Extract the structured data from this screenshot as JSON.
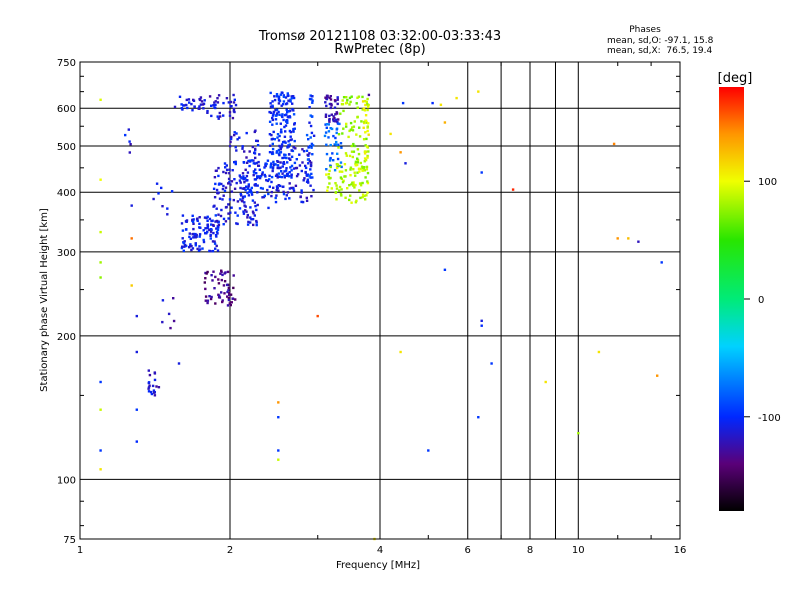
{
  "chart_data": {
    "type": "scatter",
    "title": "Tromsø 20121108 03:32:00-03:33:43",
    "subtitle": "RwPretec (8p)",
    "xlabel": "Frequency [MHz]",
    "ylabel": "Stationary phase Virtual Height [km]",
    "x_scale": "log",
    "y_scale": "log",
    "xlim": [
      1,
      16
    ],
    "ylim": [
      75,
      750
    ],
    "x_ticks": [
      1,
      2,
      4,
      6,
      8,
      10,
      16
    ],
    "y_ticks": [
      75,
      100,
      200,
      300,
      400,
      500,
      600,
      750
    ],
    "x_minor_gridlines": [
      7,
      9
    ],
    "grid": true,
    "stats": {
      "heading": "Phases",
      "line1": "mean, sd,O: -97.1, 15.8",
      "line2": "mean, sd,X:  76.5, 19.4"
    },
    "colorbar": {
      "label": "[deg]",
      "range": [
        -180,
        180
      ],
      "ticks": [
        100,
        0,
        -100
      ],
      "location": "right"
    },
    "clusters": [
      {
        "x": [
          1.55,
          1.78
        ],
        "y": [
          590,
          640
        ],
        "phase": -110,
        "n": 30
      },
      {
        "x": [
          1.8,
          2.1
        ],
        "y": [
          570,
          640
        ],
        "phase": -115,
        "n": 35
      },
      {
        "x": [
          1.6,
          1.9
        ],
        "y": [
          300,
          360
        ],
        "phase": -105,
        "n": 110
      },
      {
        "x": [
          1.85,
          2.3
        ],
        "y": [
          340,
          460
        ],
        "phase": -110,
        "n": 130
      },
      {
        "x": [
          2.1,
          2.6
        ],
        "y": [
          370,
          470
        ],
        "phase": -105,
        "n": 90
      },
      {
        "x": [
          2.0,
          2.3
        ],
        "y": [
          460,
          540
        ],
        "phase": -110,
        "n": 40
      },
      {
        "x": [
          2.4,
          2.7
        ],
        "y": [
          430,
          650
        ],
        "phase": -100,
        "n": 190
      },
      {
        "x": [
          2.6,
          2.95
        ],
        "y": [
          380,
          500
        ],
        "phase": -110,
        "n": 60
      },
      {
        "x": [
          2.85,
          2.95
        ],
        "y": [
          420,
          640
        ],
        "phase": -95,
        "n": 35
      },
      {
        "x": [
          3.1,
          3.3
        ],
        "y": [
          560,
          640
        ],
        "phase": -125,
        "n": 40
      },
      {
        "x": [
          3.1,
          3.35
        ],
        "y": [
          440,
          560
        ],
        "phase": -80,
        "n": 40
      },
      {
        "x": [
          3.1,
          3.8
        ],
        "y": [
          380,
          460
        ],
        "phase": 85,
        "n": 90
      },
      {
        "x": [
          3.3,
          3.8
        ],
        "y": [
          460,
          640
        ],
        "phase": 80,
        "n": 70
      },
      {
        "x": [
          3.7,
          3.8
        ],
        "y": [
          460,
          620
        ],
        "phase": 100,
        "n": 25
      },
      {
        "x": [
          1.78,
          2.05
        ],
        "y": [
          230,
          275
        ],
        "phase": -135,
        "n": 60
      },
      {
        "x": [
          1.36,
          1.45
        ],
        "y": [
          150,
          170
        ],
        "phase": -115,
        "n": 20
      },
      {
        "x": [
          1.23,
          1.3
        ],
        "y": [
          460,
          560
        ],
        "phase": -110,
        "n": 5
      },
      {
        "x": [
          1.4,
          1.55
        ],
        "y": [
          340,
          420
        ],
        "phase": -110,
        "n": 8
      },
      {
        "x": [
          1.45,
          1.55
        ],
        "y": [
          200,
          240
        ],
        "phase": -120,
        "n": 6
      }
    ],
    "points": [
      {
        "x": 1.1,
        "y": 625,
        "phase": 95
      },
      {
        "x": 1.1,
        "y": 425,
        "phase": 100
      },
      {
        "x": 1.1,
        "y": 330,
        "phase": 90
      },
      {
        "x": 1.1,
        "y": 285,
        "phase": 80
      },
      {
        "x": 1.1,
        "y": 265,
        "phase": 75
      },
      {
        "x": 1.1,
        "y": 160,
        "phase": -95
      },
      {
        "x": 1.1,
        "y": 140,
        "phase": 90
      },
      {
        "x": 1.1,
        "y": 115,
        "phase": -95
      },
      {
        "x": 1.1,
        "y": 105,
        "phase": 110
      },
      {
        "x": 1.27,
        "y": 375,
        "phase": -110
      },
      {
        "x": 1.27,
        "y": 320,
        "phase": 150
      },
      {
        "x": 1.27,
        "y": 255,
        "phase": 120
      },
      {
        "x": 1.3,
        "y": 220,
        "phase": -110
      },
      {
        "x": 1.3,
        "y": 185,
        "phase": -110
      },
      {
        "x": 1.3,
        "y": 140,
        "phase": -95
      },
      {
        "x": 1.3,
        "y": 120,
        "phase": -100
      },
      {
        "x": 1.58,
        "y": 175,
        "phase": -110
      },
      {
        "x": 2.5,
        "y": 145,
        "phase": 140
      },
      {
        "x": 2.5,
        "y": 135,
        "phase": -95
      },
      {
        "x": 2.5,
        "y": 115,
        "phase": -95
      },
      {
        "x": 2.5,
        "y": 110,
        "phase": 90
      },
      {
        "x": 3.0,
        "y": 220,
        "phase": 160
      },
      {
        "x": 3.8,
        "y": 640,
        "phase": -130
      },
      {
        "x": 3.7,
        "y": 620,
        "phase": 110
      },
      {
        "x": 3.9,
        "y": 75,
        "phase": 110
      },
      {
        "x": 4.2,
        "y": 530,
        "phase": 110
      },
      {
        "x": 4.4,
        "y": 485,
        "phase": 140
      },
      {
        "x": 4.45,
        "y": 615,
        "phase": -95
      },
      {
        "x": 4.5,
        "y": 460,
        "phase": -110
      },
      {
        "x": 4.4,
        "y": 185,
        "phase": 110
      },
      {
        "x": 5.0,
        "y": 115,
        "phase": -95
      },
      {
        "x": 5.1,
        "y": 615,
        "phase": -100
      },
      {
        "x": 5.3,
        "y": 610,
        "phase": 110
      },
      {
        "x": 5.4,
        "y": 560,
        "phase": 130
      },
      {
        "x": 5.4,
        "y": 275,
        "phase": -95
      },
      {
        "x": 5.7,
        "y": 630,
        "phase": 110
      },
      {
        "x": 6.3,
        "y": 650,
        "phase": 110
      },
      {
        "x": 6.4,
        "y": 440,
        "phase": -95
      },
      {
        "x": 6.4,
        "y": 215,
        "phase": -110
      },
      {
        "x": 6.4,
        "y": 210,
        "phase": -100
      },
      {
        "x": 6.3,
        "y": 135,
        "phase": -95
      },
      {
        "x": 6.7,
        "y": 175,
        "phase": -95
      },
      {
        "x": 7.4,
        "y": 405,
        "phase": 170
      },
      {
        "x": 8.6,
        "y": 160,
        "phase": 110
      },
      {
        "x": 10.0,
        "y": 125,
        "phase": 80
      },
      {
        "x": 11.0,
        "y": 185,
        "phase": 110
      },
      {
        "x": 11.8,
        "y": 505,
        "phase": 145
      },
      {
        "x": 12.0,
        "y": 320,
        "phase": 140
      },
      {
        "x": 12.6,
        "y": 320,
        "phase": 125
      },
      {
        "x": 13.2,
        "y": 315,
        "phase": -120
      },
      {
        "x": 14.7,
        "y": 285,
        "phase": -95
      },
      {
        "x": 14.4,
        "y": 165,
        "phase": 140
      }
    ]
  }
}
